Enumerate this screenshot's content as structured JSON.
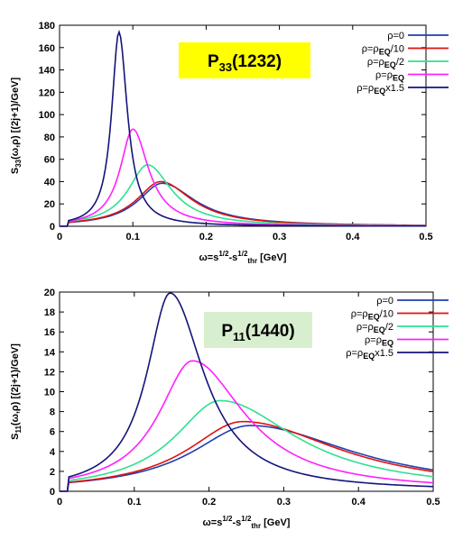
{
  "chart_data": [
    {
      "type": "line",
      "badge": "P33(1232)",
      "badge_main": "P",
      "badge_sub": "33",
      "badge_rest": "(1232)",
      "badge_color": "#ffff00",
      "xlabel_parts": [
        "ω=s",
        "1/2",
        "-s",
        "1/2",
        "thr",
        " [GeV]"
      ],
      "ylabel_parts": [
        "S",
        "33",
        "(ω,ρ) [(2j+1)/GeV]"
      ],
      "xlim": [
        0,
        0.5
      ],
      "ylim": [
        0,
        180
      ],
      "xticks": [
        "0",
        "0.1",
        "0.2",
        "0.3",
        "0.4",
        "0.5"
      ],
      "yticks": [
        "0",
        "20",
        "40",
        "60",
        "80",
        "100",
        "120",
        "140",
        "160",
        "180"
      ],
      "legend_position": "top-right",
      "series": [
        {
          "name": "ρ=0",
          "color": "#1f3fb0",
          "peak_x": 0.14,
          "peak_y": 38.5,
          "w_left": 0.04,
          "w_right": 0.055
        },
        {
          "name": "ρ=ρEQ/10",
          "color": "#e01010",
          "peak_x": 0.138,
          "peak_y": 40,
          "w_left": 0.04,
          "w_right": 0.052
        },
        {
          "name": "ρ=ρEQ/2",
          "color": "#30e090",
          "peak_x": 0.12,
          "peak_y": 55,
          "w_left": 0.032,
          "w_right": 0.04
        },
        {
          "name": "ρ=ρEQ",
          "color": "#ff20ff",
          "peak_x": 0.1,
          "peak_y": 87,
          "w_left": 0.021,
          "w_right": 0.026
        },
        {
          "name": "ρ=ρEQx1.5",
          "color": "#14147a",
          "peak_x": 0.081,
          "peak_y": 174,
          "w_left": 0.012,
          "w_right": 0.014
        }
      ]
    },
    {
      "type": "line",
      "badge": "P11(1440)",
      "badge_main": "P",
      "badge_sub": "11",
      "badge_rest": "(1440)",
      "badge_color": "#d8efcf",
      "xlabel_parts": [
        "ω=s",
        "1/2",
        "-s",
        "1/2",
        "thr",
        " [GeV]"
      ],
      "ylabel_parts": [
        "S",
        "11",
        "(ω,ρ) [(2j+1)/GeV]"
      ],
      "xlim": [
        0,
        0.5
      ],
      "ylim": [
        0,
        20
      ],
      "xticks": [
        "0",
        "0.1",
        "0.2",
        "0.3",
        "0.4",
        "0.5"
      ],
      "yticks": [
        "0",
        "2",
        "4",
        "6",
        "8",
        "10",
        "12",
        "14",
        "16",
        "18",
        "20"
      ],
      "legend_position": "top-right",
      "series": [
        {
          "name": "ρ=0",
          "color": "#1f3fb0",
          "peak_x": 0.255,
          "peak_y": 6.6,
          "w_left": 0.095,
          "w_right": 0.17
        },
        {
          "name": "ρ=ρEQ/10",
          "color": "#e01010",
          "peak_x": 0.245,
          "peak_y": 7.0,
          "w_left": 0.09,
          "w_right": 0.16
        },
        {
          "name": "ρ=ρEQ/2",
          "color": "#30e090",
          "peak_x": 0.215,
          "peak_y": 9.1,
          "w_left": 0.075,
          "w_right": 0.125
        },
        {
          "name": "ρ=ρEQ",
          "color": "#ff20ff",
          "peak_x": 0.178,
          "peak_y": 13.1,
          "w_left": 0.055,
          "w_right": 0.085
        },
        {
          "name": "ρ=ρEQx1.5",
          "color": "#14147a",
          "peak_x": 0.148,
          "peak_y": 19.9,
          "w_left": 0.038,
          "w_right": 0.055
        }
      ]
    }
  ]
}
